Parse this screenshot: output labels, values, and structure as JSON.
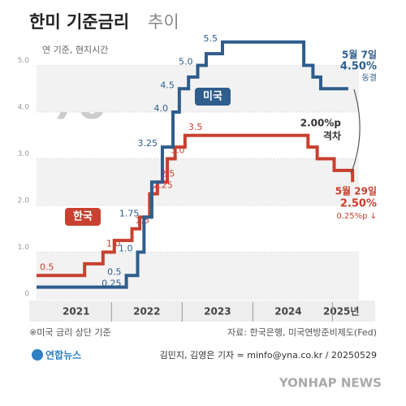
{
  "chart_data": {
    "type": "step",
    "title": "한미 기준금리",
    "title_suffix": "추이",
    "note": "연 기준, 현지시간",
    "icon": "%",
    "xlim": [
      2020.94,
      2025.5
    ],
    "xticks": [
      {
        "value": 2021.5,
        "label": "2021"
      },
      {
        "value": 2022.5,
        "label": "2022"
      },
      {
        "value": 2023.5,
        "label": "2023"
      },
      {
        "value": 2024.5,
        "label": "2024"
      },
      {
        "value": 2025.25,
        "label": "2025년"
      }
    ],
    "ylim": [
      0,
      5.6
    ],
    "yticks": [
      0,
      {
        "value": 1,
        "label": "1.0"
      },
      {
        "value": 2,
        "label": "2.0"
      },
      {
        "value": 3,
        "label": "3.0"
      },
      {
        "value": 4,
        "label": "4.0"
      },
      {
        "value": 5,
        "label": "5.0"
      }
    ],
    "series": [
      {
        "name": "한국",
        "color": "#c8402f",
        "x": [
          2020.94,
          2021.62,
          2021.88,
          2022.04,
          2022.29,
          2022.4,
          2022.54,
          2022.65,
          2022.79,
          2022.9,
          2023.04,
          2024.78,
          2024.91,
          2025.15,
          2025.41
        ],
        "values": [
          0.5,
          0.75,
          1.0,
          1.25,
          1.5,
          1.75,
          2.25,
          2.5,
          3.0,
          3.25,
          3.5,
          3.25,
          3.0,
          2.75,
          2.5
        ],
        "value_labels": [
          "0.5",
          null,
          "1.0",
          null,
          "1.5",
          null,
          "2.25",
          "2.5",
          "3.0",
          null,
          "3.5",
          null,
          null,
          null,
          null
        ]
      },
      {
        "name": "미국",
        "color": "#2f5d8c",
        "x": [
          2020.94,
          2022.21,
          2022.37,
          2022.46,
          2022.57,
          2022.72,
          2022.87,
          2022.96,
          2023.09,
          2023.22,
          2023.34,
          2023.57,
          2024.72,
          2024.85,
          2024.96,
          2025.35
        ],
        "values": [
          0.25,
          0.5,
          1.0,
          1.75,
          2.5,
          3.25,
          4.0,
          4.5,
          4.75,
          5.0,
          5.25,
          5.5,
          5.0,
          4.75,
          4.5,
          4.5
        ],
        "value_labels": [
          "0.25",
          "0.5",
          "1.0",
          "1.75",
          null,
          "3.25",
          "4.0",
          "4.5",
          null,
          "5.0",
          null,
          "5.5",
          null,
          null,
          null,
          null
        ]
      }
    ],
    "annotations": {
      "us_date": "5월 7일",
      "us_rate": "4.50%",
      "us_status": "동결",
      "gap": "2.00%p",
      "gap_label": "격차",
      "kr_date": "5월 29일",
      "kr_rate": "2.50%",
      "kr_change": "0.25%p ↓"
    }
  },
  "footer": {
    "footnote": "※미국 금리 상단 기준",
    "source": "자료: 한국은행, 미국연방준비제도(Fed)",
    "logo": "연합뉴스",
    "credit": "김민지, 김영은 기자 = minfo@yna.co.kr / 20250529",
    "watermark": "YONHAP NEWS"
  }
}
